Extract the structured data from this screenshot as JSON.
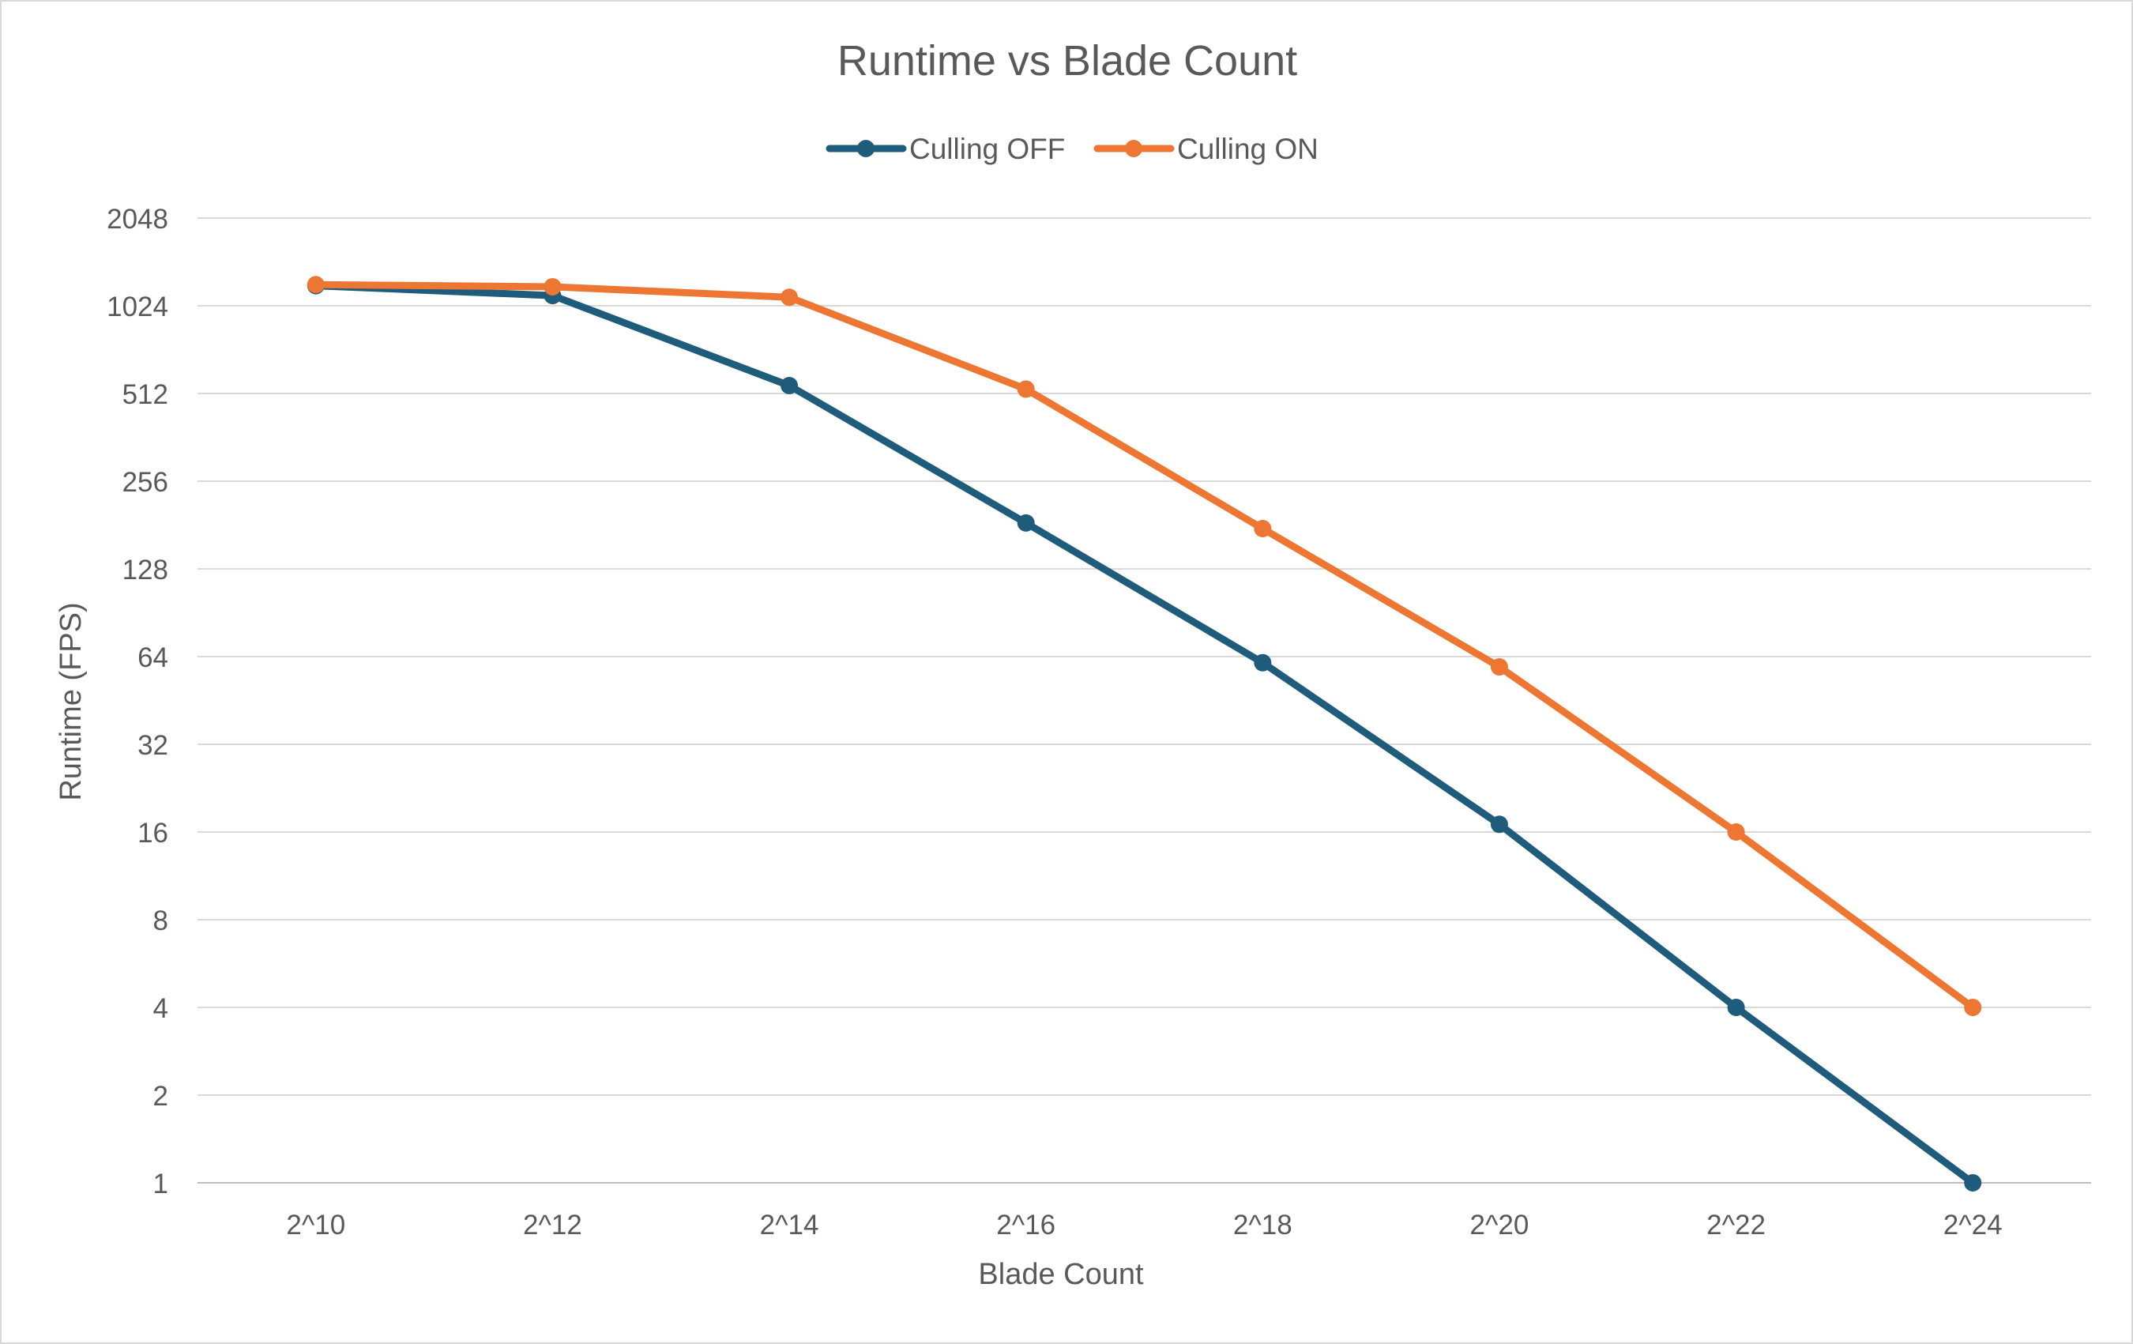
{
  "chart_data": {
    "type": "line",
    "title": "Runtime vs Blade Count",
    "xlabel": "Blade Count",
    "ylabel": "Runtime (FPS)",
    "y_scale": "log2",
    "ylim": [
      1,
      2048
    ],
    "yticks": [
      "1",
      "2",
      "4",
      "8",
      "16",
      "32",
      "64",
      "128",
      "256",
      "512",
      "1024",
      "2048"
    ],
    "ytick_values": [
      1,
      2,
      4,
      8,
      16,
      32,
      64,
      128,
      256,
      512,
      1024,
      2048
    ],
    "categories": [
      "2^10",
      "2^12",
      "2^14",
      "2^16",
      "2^18",
      "2^20",
      "2^22",
      "2^24"
    ],
    "grid": "horizontal",
    "legend_position": "top",
    "series": [
      {
        "name": "Culling OFF",
        "color": "#1f5c7c",
        "values": [
          1200,
          1110,
          545,
          184,
          61,
          17,
          4,
          1
        ]
      },
      {
        "name": "Culling ON",
        "color": "#ed7632",
        "values": [
          1210,
          1190,
          1095,
          530,
          176,
          59,
          16,
          4
        ]
      }
    ]
  }
}
